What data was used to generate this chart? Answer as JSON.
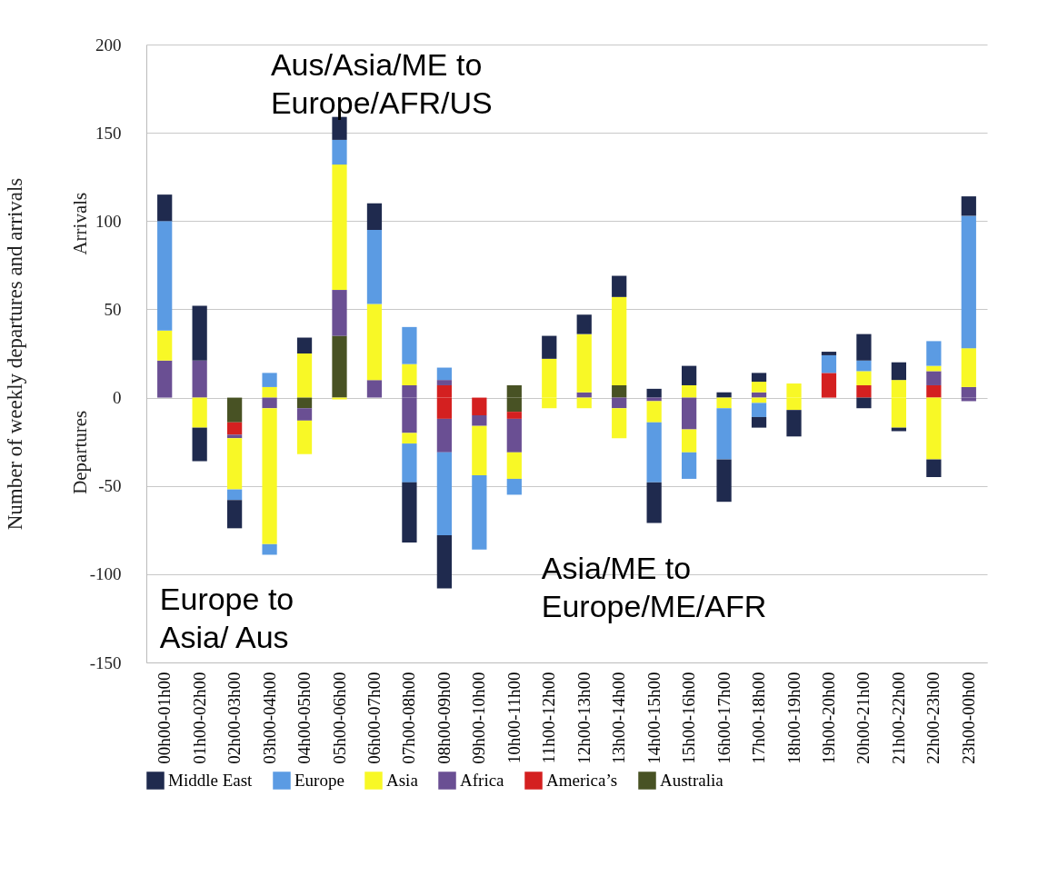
{
  "chart_data": {
    "type": "bar",
    "stacked": true,
    "ylabel": "Number of weekly departures and arrivals",
    "categories": [
      "00h00-01h00",
      "01h00-02h00",
      "02h00-03h00",
      "03h00-04h00",
      "04h00-05h00",
      "05h00-06h00",
      "06h00-07h00",
      "07h00-08h00",
      "08h00-09h00",
      "09h00-10h00",
      "10h00-11h00",
      "11h00-12h00",
      "12h00-13h00",
      "13h00-14h00",
      "14h00-15h00",
      "15h00-16h00",
      "16h00-17h00",
      "17h00-18h00",
      "18h00-19h00",
      "19h00-20h00",
      "20h00-21h00",
      "21h00-22h00",
      "22h00-23h00",
      "23h00-00h00"
    ],
    "series": [
      {
        "name": "Australia",
        "color": "#485224",
        "values": [
          null,
          null,
          null,
          null,
          null,
          35,
          null,
          null,
          null,
          null,
          7,
          null,
          null,
          7,
          null,
          null,
          null,
          null,
          null,
          null,
          null,
          null,
          null,
          null
        ]
      },
      {
        "name": "America’s",
        "color": "#d42020",
        "values": [
          null,
          null,
          null,
          null,
          null,
          null,
          null,
          null,
          7,
          null,
          null,
          null,
          null,
          null,
          null,
          null,
          null,
          null,
          null,
          14,
          7,
          null,
          7,
          null
        ]
      },
      {
        "name": "Africa",
        "color": "#6a4f93",
        "values": [
          21,
          21,
          null,
          null,
          null,
          26,
          10,
          7,
          3,
          null,
          null,
          null,
          3,
          null,
          null,
          null,
          null,
          3,
          null,
          null,
          null,
          null,
          8,
          6
        ]
      },
      {
        "name": "Asia",
        "color": "#f8f826",
        "values": [
          17,
          null,
          null,
          6,
          25,
          71,
          43,
          12,
          null,
          null,
          null,
          22,
          33,
          50,
          null,
          7,
          null,
          6,
          8,
          null,
          8,
          10,
          3,
          22
        ]
      },
      {
        "name": "Europe",
        "color": "#5b9be3",
        "values": [
          62,
          null,
          null,
          8,
          null,
          14,
          42,
          21,
          7,
          null,
          null,
          null,
          null,
          null,
          null,
          null,
          null,
          null,
          null,
          10,
          6,
          null,
          14,
          75
        ]
      },
      {
        "name": "Middle East",
        "color": "#1f2a4e",
        "values": [
          15,
          31,
          null,
          null,
          9,
          13,
          15,
          null,
          null,
          null,
          null,
          13,
          11,
          12,
          5,
          11,
          3,
          5,
          null,
          2,
          15,
          10,
          null,
          11
        ]
      },
      {
        "color": "#485224",
        "values": [
          null,
          null,
          -14,
          null,
          -6,
          null,
          null,
          null,
          null,
          null,
          -8,
          null,
          null,
          null,
          null,
          null,
          null,
          null,
          null,
          null,
          null,
          null,
          null,
          null
        ]
      },
      {
        "color": "#d42020",
        "values": [
          null,
          null,
          -7,
          null,
          null,
          null,
          null,
          null,
          -12,
          -10,
          -4,
          null,
          null,
          null,
          null,
          null,
          null,
          null,
          null,
          null,
          null,
          null,
          null,
          null
        ]
      },
      {
        "color": "#6a4f93",
        "values": [
          null,
          null,
          -2,
          -6,
          -7,
          null,
          null,
          -20,
          -19,
          -6,
          -19,
          null,
          null,
          -6,
          -2,
          -18,
          null,
          null,
          null,
          null,
          null,
          null,
          null,
          -2
        ]
      },
      {
        "color": "#f8f826",
        "values": [
          null,
          -17,
          -29,
          -77,
          -19,
          -1,
          null,
          -6,
          null,
          -28,
          -15,
          -6,
          -6,
          -17,
          -12,
          -13,
          -6,
          -3,
          -7,
          null,
          null,
          -17,
          -35,
          null
        ]
      },
      {
        "color": "#5b9be3",
        "values": [
          null,
          null,
          -6,
          -6,
          null,
          null,
          null,
          -22,
          -47,
          -42,
          -9,
          null,
          null,
          null,
          -34,
          -15,
          -29,
          -8,
          null,
          null,
          null,
          null,
          null,
          null
        ]
      },
      {
        "color": "#1f2a4e",
        "values": [
          null,
          -19,
          -16,
          null,
          null,
          null,
          null,
          -34,
          -30,
          null,
          null,
          null,
          null,
          null,
          -23,
          null,
          -24,
          -6,
          -15,
          null,
          -6,
          -2,
          -10,
          null
        ]
      }
    ],
    "ylim": [
      -150,
      200
    ],
    "yticks": [
      -150,
      -100,
      -50,
      0,
      50,
      100,
      150,
      200
    ],
    "grid": "y",
    "legend": "bottom",
    "annotations": [
      "Arrivals",
      "Departures",
      "Aus/Asia/ME to\nEurope/AFR/US",
      "Europe to\nAsia/ Aus",
      "Asia/ME to\nEurope/ME/AFR"
    ]
  }
}
